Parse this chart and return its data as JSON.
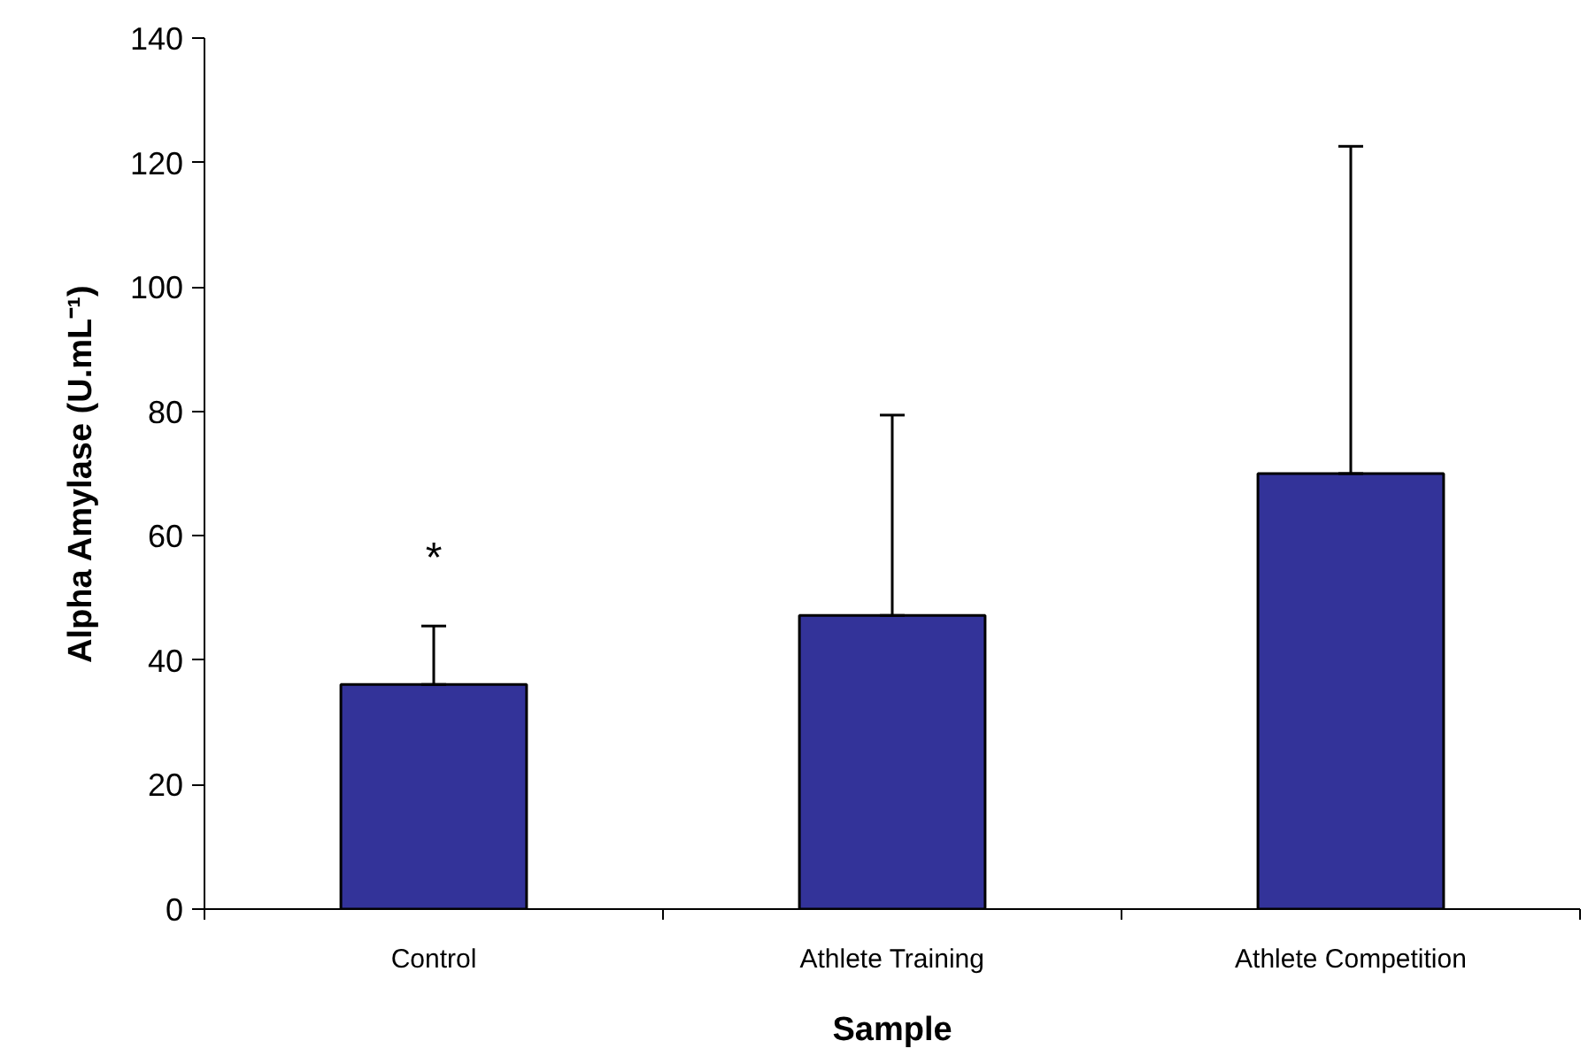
{
  "chart_data": {
    "type": "bar",
    "xlabel": "Sample",
    "ylabel": "Alpha Amylase (U.mL⁻¹)",
    "categories": [
      "Control",
      "Athlete Training",
      "Athlete Competition"
    ],
    "values": [
      36.1,
      47.2,
      70.0
    ],
    "color": "#333399",
    "errors": [
      [
        36.1,
        45.5
      ],
      [
        47.2,
        79.4
      ],
      [
        70.0,
        122.6
      ]
    ],
    "ylim": [
      0,
      140
    ],
    "yticks": [
      0,
      20,
      40,
      60,
      80,
      100,
      120,
      140
    ],
    "grid": false,
    "annotations": [
      "*"
    ]
  }
}
